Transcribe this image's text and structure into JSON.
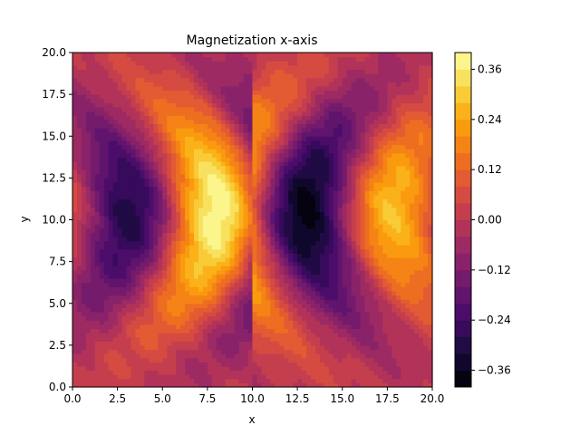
{
  "chart_data": {
    "type": "heatmap",
    "title": "Magnetization x-axis",
    "xlabel": "x",
    "ylabel": "y",
    "xlim": [
      0.0,
      20.0
    ],
    "ylim": [
      0.0,
      20.0
    ],
    "x_ticks": [
      "0.0",
      "2.5",
      "5.0",
      "7.5",
      "10.0",
      "12.5",
      "15.0",
      "17.5",
      "20.0"
    ],
    "y_ticks": [
      "0.0",
      "2.5",
      "5.0",
      "7.5",
      "10.0",
      "12.5",
      "15.0",
      "17.5",
      "20.0"
    ],
    "colormap": "inferno",
    "levels_range": [
      -0.4,
      0.4
    ],
    "colorbar_ticks": [
      "−0.36",
      "−0.24",
      "−0.12",
      "0.00",
      "0.12",
      "0.24",
      "0.36"
    ],
    "colorbar_tick_values": [
      -0.36,
      -0.24,
      -0.12,
      0.0,
      0.12,
      0.24,
      0.36
    ],
    "extrema": [
      {
        "x": 3.0,
        "y": 10.5,
        "value": -0.38
      },
      {
        "x": 8.0,
        "y": 10.5,
        "value": 0.38
      },
      {
        "x": 13.0,
        "y": 10.5,
        "value": -0.38
      },
      {
        "x": 18.0,
        "y": 10.5,
        "value": 0.38
      }
    ],
    "grid": false
  }
}
